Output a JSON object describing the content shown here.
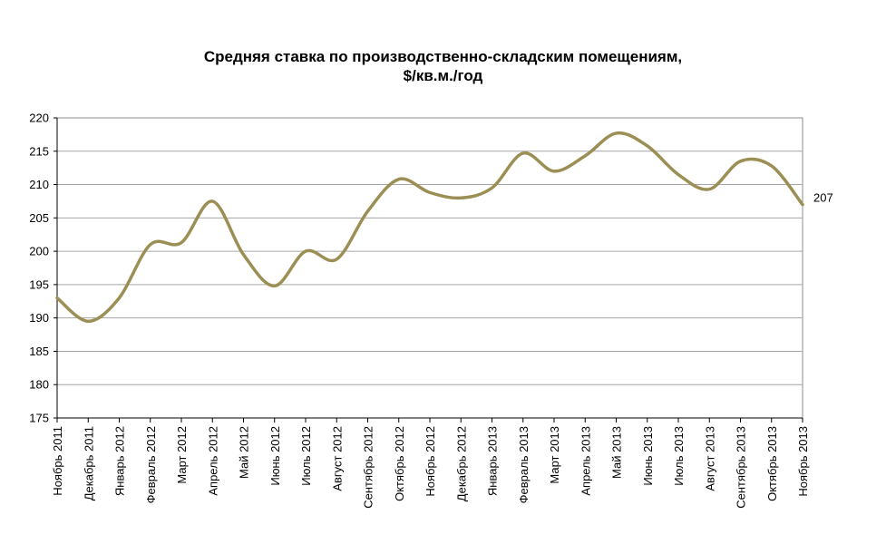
{
  "chart_data": {
    "type": "line",
    "title_line1": "Средняя ставка по производственно-складским помещениям,",
    "title_line2": "$/кв.м./год",
    "xlabel": "",
    "ylabel": "",
    "ylim": [
      175,
      220
    ],
    "yticks": [
      175,
      180,
      185,
      190,
      195,
      200,
      205,
      210,
      215,
      220
    ],
    "grid": true,
    "legend": "none",
    "line_color": "#9C8F55",
    "categories": [
      "Ноябрь 2011",
      "Декабрь 2011",
      "Январь 2012",
      "Февраль 2012",
      "Март 2012",
      "Апрель 2012",
      "Май 2012",
      "Июнь 2012",
      "Июль 2012",
      "Август 2012",
      "Сентябрь 2012",
      "Октябрь 2012",
      "Ноябрь 2012",
      "Декабрь 2012",
      "Январь 2013",
      "Февраль 2013",
      "Март 2013",
      "Апрель 2013",
      "Май 2013",
      "Июнь 2013",
      "Июль 2013",
      "Август 2013",
      "Сентябрь 2013",
      "Октябрь 2013",
      "Ноябрь 2013"
    ],
    "series": [
      {
        "values": [
          193,
          189.5,
          193,
          201,
          201.3,
          207.5,
          199.5,
          194.8,
          200,
          198.8,
          206,
          210.8,
          208.8,
          208,
          209.5,
          214.7,
          212,
          214.3,
          217.7,
          215.8,
          211.5,
          209.3,
          213.5,
          212.8,
          207
        ]
      }
    ],
    "end_label": "207"
  }
}
